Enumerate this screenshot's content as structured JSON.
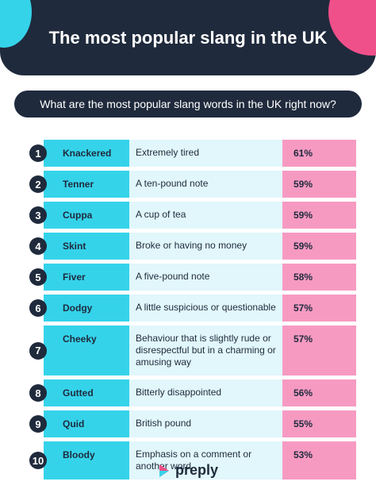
{
  "title": "The most popular slang in the UK",
  "question": "What are the most popular slang words in the UK right now?",
  "rows": [
    {
      "num": "1",
      "word": "Knackered",
      "meaning": "Extremely tired",
      "pct": "61%"
    },
    {
      "num": "2",
      "word": "Tenner",
      "meaning": "A ten-pound note",
      "pct": "59%"
    },
    {
      "num": "3",
      "word": "Cuppa",
      "meaning": "A cup of tea",
      "pct": "59%"
    },
    {
      "num": "4",
      "word": "Skint",
      "meaning": "Broke or having no money",
      "pct": "59%"
    },
    {
      "num": "5",
      "word": "Fiver",
      "meaning": "A five-pound note",
      "pct": "58%"
    },
    {
      "num": "6",
      "word": "Dodgy",
      "meaning": "A little suspicious or questionable",
      "pct": "57%"
    },
    {
      "num": "7",
      "word": "Cheeky",
      "meaning": "Behaviour that is slightly rude or disrespectful but in a charming or amusing way",
      "pct": "57%"
    },
    {
      "num": "8",
      "word": "Gutted",
      "meaning": "Bitterly disappointed",
      "pct": "56%"
    },
    {
      "num": "9",
      "word": "Quid",
      "meaning": "British pound",
      "pct": "55%"
    },
    {
      "num": "10",
      "word": "Bloody",
      "meaning": "Emphasis on a comment or another word",
      "pct": "53%"
    }
  ],
  "logo": {
    "text": "preply",
    "icon": "preply-logo-icon"
  },
  "colors": {
    "dark": "#1f2a3c",
    "cyan": "#35d3ea",
    "light_cyan": "#e1f7fb",
    "pink": "#f79ac2",
    "accent_pink": "#f0508a"
  }
}
